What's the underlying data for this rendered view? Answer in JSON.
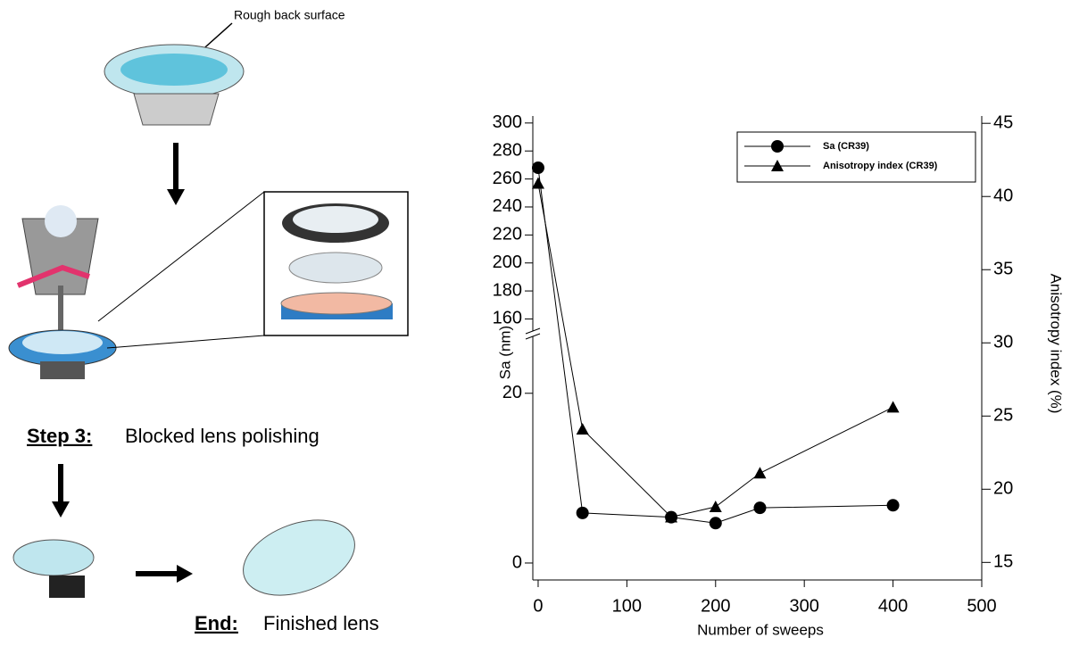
{
  "illustration": {
    "top_label": "Rough back surface",
    "step_label": "Step 3:",
    "step_text": "Blocked lens polishing",
    "end_label": "End:",
    "end_text": "Finished lens"
  },
  "chart_data": {
    "type": "line",
    "x_label": "Number of sweeps",
    "y_label": "Sa (nm)",
    "y2_label": "Anisotropy index (%)",
    "x": [
      0,
      50,
      150,
      200,
      250,
      400
    ],
    "xlim": [
      -6,
      500
    ],
    "xticks": [
      0,
      100,
      200,
      300,
      400,
      500
    ],
    "y_segments": [
      {
        "ylim": [
          -2,
          26.6
        ],
        "yticks": [
          0,
          20
        ]
      },
      {
        "ylim": [
          152,
          305
        ],
        "yticks": [
          160,
          180,
          200,
          220,
          240,
          260,
          280,
          300
        ]
      }
    ],
    "y2lim": [
      13.8,
      45.5
    ],
    "y2ticks": [
      15,
      20,
      25,
      30,
      35,
      40,
      45
    ],
    "legend": "upper right",
    "series": [
      {
        "name": "Sa (CR39)",
        "color": "#000000",
        "marker": "circle",
        "values": [
          268,
          5.9,
          5.4,
          4.7,
          6.5,
          6.8
        ]
      },
      {
        "name": "Anisotropy index (CR39)",
        "color": "#000000",
        "marker": "triangle",
        "axis": "y2",
        "values": [
          40.9,
          24.1,
          18.1,
          18.8,
          21.1,
          25.6
        ]
      }
    ]
  }
}
